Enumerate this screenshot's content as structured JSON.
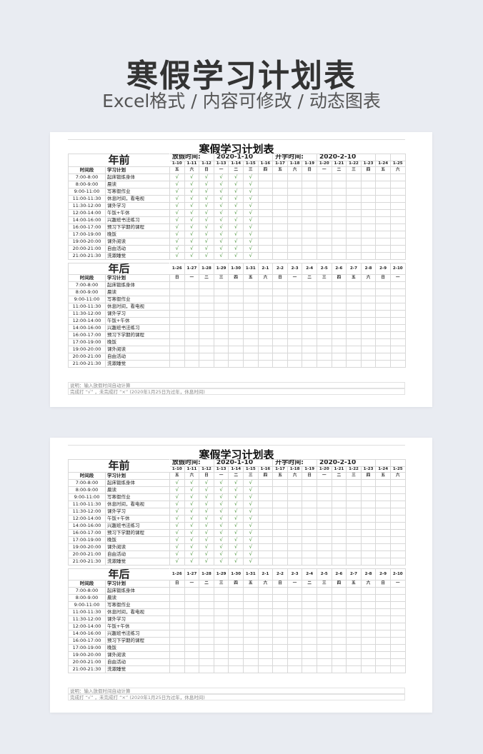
{
  "hero": {
    "title": "寒假学习计划表",
    "subtitle": "Excel格式 / 内容可修改 / 动态图表"
  },
  "sheet": {
    "title": "寒假学习计划表",
    "before_label": "年前",
    "after_label": "年后",
    "col_time": "时间段",
    "col_plan": "学习计划",
    "holiday_label": "放假时间:",
    "holiday_date": "2020-1-10",
    "school_label": "开学时间:",
    "school_date": "2020-2-10",
    "check_mark": "√",
    "before_dates": [
      "1-10",
      "1-11",
      "1-12",
      "1-13",
      "1-14",
      "1-15",
      "1-16",
      "1-17",
      "1-18",
      "1-19",
      "1-20",
      "1-21",
      "1-22",
      "1-23",
      "1-24",
      "1-25"
    ],
    "before_weekdays": [
      "五",
      "六",
      "日",
      "一",
      "二",
      "三",
      "四",
      "五",
      "六",
      "日",
      "一",
      "二",
      "三",
      "四",
      "五",
      "六"
    ],
    "before_checked_days": 6,
    "after_dates": [
      "1-26",
      "1-27",
      "1-28",
      "1-29",
      "1-30",
      "1-31",
      "2-1",
      "2-2",
      "2-3",
      "2-4",
      "2-5",
      "2-6",
      "2-7",
      "2-8",
      "2-9",
      "2-10"
    ],
    "after_weekdays": [
      "日",
      "一",
      "二",
      "三",
      "四",
      "五",
      "六",
      "日",
      "一",
      "二",
      "三",
      "四",
      "五",
      "六",
      "日",
      "一"
    ],
    "rows": [
      {
        "time": "7:00-8:00",
        "plan": "起床锻炼身体"
      },
      {
        "time": "8:00-9:00",
        "plan": "晨读"
      },
      {
        "time": "9:00-11:00",
        "plan": "写寒假作业"
      },
      {
        "time": "11:00-11:30",
        "plan": "休息时间，看电视"
      },
      {
        "time": "11:30-12:00",
        "plan": "课外学习"
      },
      {
        "time": "12:00-14:00",
        "plan": "午饭+午休"
      },
      {
        "time": "14:00-16:00",
        "plan": "兴趣班书法练习"
      },
      {
        "time": "16:00-17:00",
        "plan": "预习下学期的课程"
      },
      {
        "time": "17:00-19:00",
        "plan": "晚饭"
      },
      {
        "time": "19:00-20:00",
        "plan": "课外阅读"
      },
      {
        "time": "20:00-21:00",
        "plan": "自由活动"
      },
      {
        "time": "21:00-21:30",
        "plan": "洗漱睡觉"
      }
    ],
    "notes": [
      "说明：输入放假时间自动计算",
      "完成打 “√” ，未完成打 “×”   (2020年1月25日为过年，休息时间)"
    ]
  }
}
